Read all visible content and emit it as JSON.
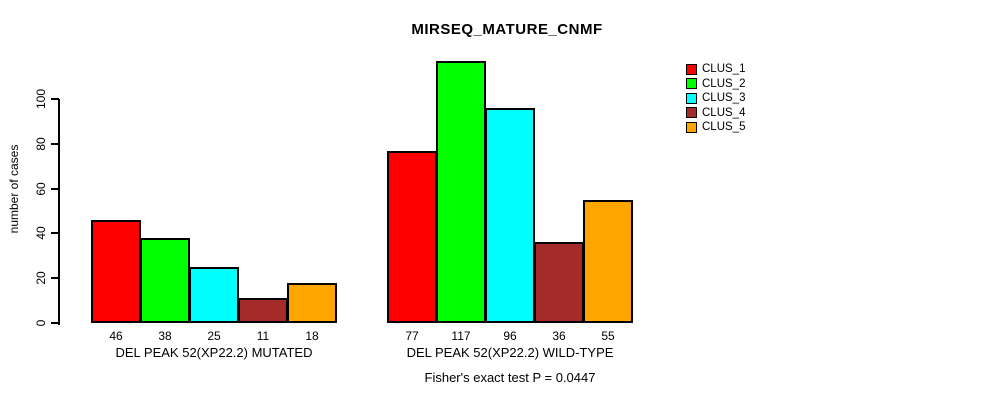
{
  "title": "MIRSEQ_MATURE_CNMF",
  "footer": "Fisher's exact test P = 0.0447",
  "chart_data": {
    "type": "bar",
    "title": "MIRSEQ_MATURE_CNMF",
    "xlabel": "",
    "ylabel": "number of cases",
    "ylim": [
      0,
      117
    ],
    "yticks": [
      0,
      20,
      40,
      60,
      80,
      100
    ],
    "grid": false,
    "legend_position": "top-right",
    "series_labels": [
      "CLUS_1",
      "CLUS_2",
      "CLUS_3",
      "CLUS_4",
      "CLUS_5"
    ],
    "colors": [
      "#FF0000",
      "#00FF00",
      "#00FFFF",
      "#A52A2A",
      "#FFA500"
    ],
    "groups": [
      {
        "label": "DEL PEAK 52(XP22.2) MUTATED",
        "values": [
          46,
          38,
          25,
          11,
          18
        ]
      },
      {
        "label": "DEL PEAK 52(XP22.2) WILD-TYPE",
        "values": [
          77,
          117,
          96,
          36,
          55
        ]
      }
    ],
    "value_labels_shown": true,
    "annotation": "Fisher's exact test P = 0.0447"
  },
  "legend": {
    "items": [
      {
        "label": "CLUS_1",
        "color": "#FF0000"
      },
      {
        "label": "CLUS_2",
        "color": "#00FF00"
      },
      {
        "label": "CLUS_3",
        "color": "#00FFFF"
      },
      {
        "label": "CLUS_4",
        "color": "#A52A2A"
      },
      {
        "label": "CLUS_5",
        "color": "#FFA500"
      }
    ]
  }
}
